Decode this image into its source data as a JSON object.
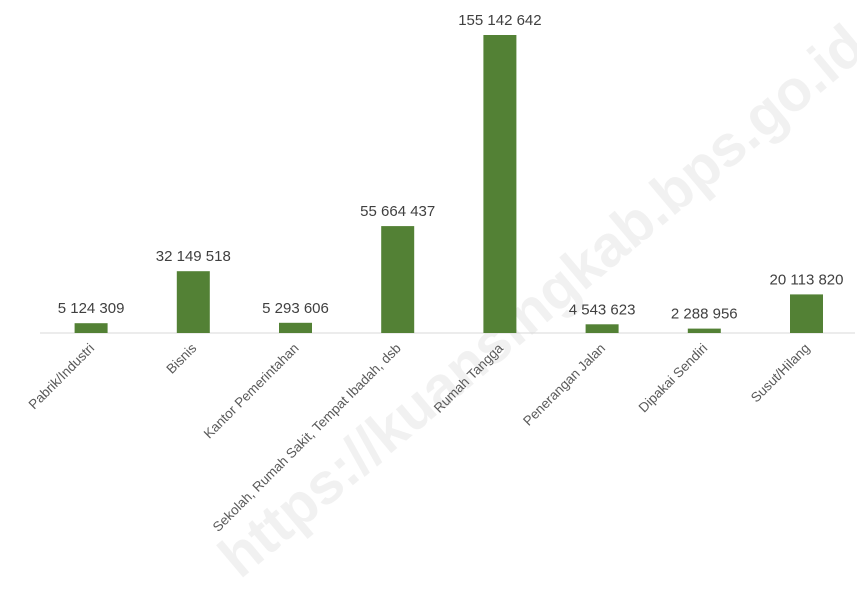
{
  "watermark": "https://kuansingkab.bps.go.id",
  "colors": {
    "bar": "#538135",
    "axis": "#d9d9d9"
  },
  "chart_data": {
    "type": "bar",
    "categories": [
      "Pabrik/Industri",
      "Bisnis",
      "Kantor Pemerintahan",
      "Sekolah, Rumah Sakit, Tempat Ibadah, dsb",
      "Rumah Tangga",
      "Penerangan Jalan",
      "Dipakai Sendiri",
      "Susut/Hilang"
    ],
    "values": [
      5124309,
      32149518,
      5293606,
      55664437,
      155142642,
      4543623,
      2288956,
      20113820
    ],
    "value_labels": [
      "5 124 309",
      "32 149 518",
      "5 293 606",
      "55 664 437",
      "155 142 642",
      "4 543 623",
      "2 288 956",
      "20 113 820"
    ],
    "ylim": [
      0,
      155142642
    ],
    "grid": false,
    "legend": "none"
  }
}
